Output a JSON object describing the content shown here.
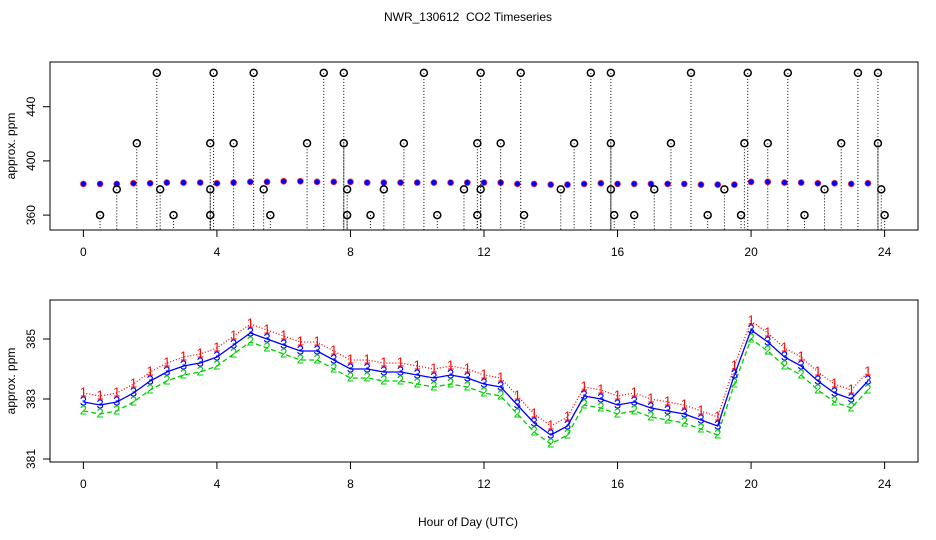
{
  "chart_data": [
    {
      "type": "scatter",
      "title": "NWR_130612  CO2 Timeseries",
      "ylabel": "approx. ppm",
      "xlim": [
        -1,
        25
      ],
      "xticks": [
        0,
        4,
        8,
        12,
        16,
        20,
        24
      ],
      "ylim": [
        349,
        473
      ],
      "yticks": [
        360,
        400,
        440
      ],
      "x": [
        0,
        0.5,
        1,
        1.5,
        2,
        2.5,
        3,
        3.5,
        4,
        4.5,
        5,
        5.5,
        6,
        6.5,
        7,
        7.5,
        8,
        8.5,
        9,
        9.5,
        10,
        10.5,
        11,
        11.5,
        12,
        12.5,
        13,
        13.5,
        14,
        14.5,
        15,
        15.5,
        16,
        16.5,
        17,
        17.5,
        18,
        18.5,
        19,
        19.5,
        20,
        20.5,
        21,
        21.5,
        22,
        22.5,
        23,
        23.5
      ],
      "series": [
        {
          "color": "#0000ff",
          "values": [
            383,
            383,
            383,
            383.5,
            383.5,
            384,
            384,
            384,
            383.5,
            384,
            384.5,
            384.5,
            385,
            385,
            384.5,
            384.5,
            384.5,
            384,
            384,
            384,
            384,
            384,
            384,
            384,
            384,
            384,
            383,
            383,
            382.5,
            382.5,
            383,
            383.5,
            383,
            383,
            383,
            383,
            383,
            382.5,
            382.5,
            382.5,
            384.5,
            384.5,
            384,
            384,
            383.5,
            383.5,
            383,
            383.5
          ]
        },
        {
          "color": "#000000",
          "x": [
            2.2,
            3.9,
            5.1,
            7.2,
            7.8,
            10.2,
            11.9,
            13.1,
            15.2,
            15.8,
            18.2,
            19.9,
            21.1,
            23.2,
            23.8,
            1.6,
            3.8,
            4.5,
            6.7,
            7.8,
            9.6,
            11.8,
            12.5,
            14.7,
            15.8,
            17.6,
            19.8,
            20.5,
            22.7,
            23.8,
            1.0,
            2.3,
            3.8,
            5.4,
            7.9,
            9.0,
            11.4,
            11.9,
            14.3,
            15.8,
            17.1,
            19.2,
            22.2,
            23.9,
            0.5,
            2.7,
            3.8,
            5.6,
            7.9,
            8.6,
            10.6,
            11.8,
            13.2,
            15.9,
            16.5,
            18.7,
            19.7,
            21.6,
            24.0
          ],
          "values": [
            465,
            465,
            465,
            465,
            465,
            465,
            465,
            465,
            465,
            465,
            465,
            465,
            465,
            465,
            465,
            413,
            413,
            413,
            413,
            413,
            413,
            413,
            413,
            413,
            413,
            413,
            413,
            413,
            413,
            413,
            379,
            379,
            379,
            379,
            379,
            379,
            379,
            379,
            379,
            379,
            379,
            379,
            379,
            379,
            360,
            360,
            360,
            360,
            360,
            360,
            360,
            360,
            360,
            360,
            360,
            360,
            360,
            360,
            360
          ]
        }
      ]
    },
    {
      "type": "line",
      "ylabel": "approx. ppm",
      "xlabel": "Hour of Day (UTC)",
      "xlim": [
        -1,
        25
      ],
      "xticks": [
        0,
        4,
        8,
        12,
        16,
        20,
        24
      ],
      "ylim": [
        380.9,
        386.3
      ],
      "yticks": [
        381,
        383,
        385
      ],
      "x": [
        0,
        0.5,
        1,
        1.5,
        2,
        2.5,
        3,
        3.5,
        4,
        4.5,
        5,
        5.5,
        6,
        6.5,
        7,
        7.5,
        8,
        8.5,
        9,
        9.5,
        10,
        10.5,
        11,
        11.5,
        12,
        12.5,
        13,
        13.5,
        14,
        14.5,
        15,
        15.5,
        16,
        16.5,
        17,
        17.5,
        18,
        18.5,
        19,
        19.5,
        20,
        20.5,
        21,
        21.5,
        22,
        22.5,
        23,
        23.5
      ],
      "series": [
        {
          "name": "1",
          "color": "#ff0000",
          "values": [
            383.2,
            383.1,
            383.2,
            383.5,
            383.9,
            384.2,
            384.4,
            384.5,
            384.7,
            385.1,
            385.5,
            385.3,
            385.1,
            384.9,
            384.9,
            384.6,
            384.3,
            384.3,
            384.2,
            384.2,
            384.1,
            384.0,
            384.1,
            384.0,
            383.8,
            383.7,
            383.1,
            382.5,
            382.1,
            382.4,
            383.4,
            383.3,
            383.1,
            383.2,
            383.0,
            382.9,
            382.8,
            382.6,
            382.4,
            384.1,
            385.6,
            385.2,
            384.7,
            384.4,
            383.9,
            383.5,
            383.3,
            383.9
          ]
        },
        {
          "name": "2",
          "color": "#00cd00",
          "values": [
            382.6,
            382.5,
            382.6,
            382.9,
            383.3,
            383.6,
            383.8,
            383.9,
            384.1,
            384.5,
            384.9,
            384.7,
            384.5,
            384.3,
            384.3,
            384.0,
            383.7,
            383.7,
            383.6,
            383.6,
            383.5,
            383.4,
            383.5,
            383.4,
            383.2,
            383.1,
            382.5,
            381.9,
            381.5,
            381.8,
            382.8,
            382.7,
            382.5,
            382.6,
            382.4,
            382.3,
            382.2,
            382.0,
            381.8,
            383.5,
            385.0,
            384.6,
            384.1,
            383.8,
            383.3,
            382.9,
            382.7,
            383.3
          ]
        },
        {
          "name": "3",
          "color": "#0000ff",
          "values": [
            382.9,
            382.8,
            382.9,
            383.2,
            383.6,
            383.9,
            384.1,
            384.2,
            384.4,
            384.8,
            385.2,
            385.0,
            384.8,
            384.6,
            384.6,
            384.3,
            384.0,
            384.0,
            383.9,
            383.9,
            383.8,
            383.7,
            383.8,
            383.7,
            383.5,
            383.4,
            382.8,
            382.2,
            381.8,
            382.1,
            383.1,
            383.0,
            382.8,
            382.9,
            382.7,
            382.6,
            382.5,
            382.3,
            382.1,
            383.8,
            385.3,
            384.9,
            384.4,
            384.1,
            383.6,
            383.2,
            383.0,
            383.6
          ]
        }
      ]
    }
  ]
}
